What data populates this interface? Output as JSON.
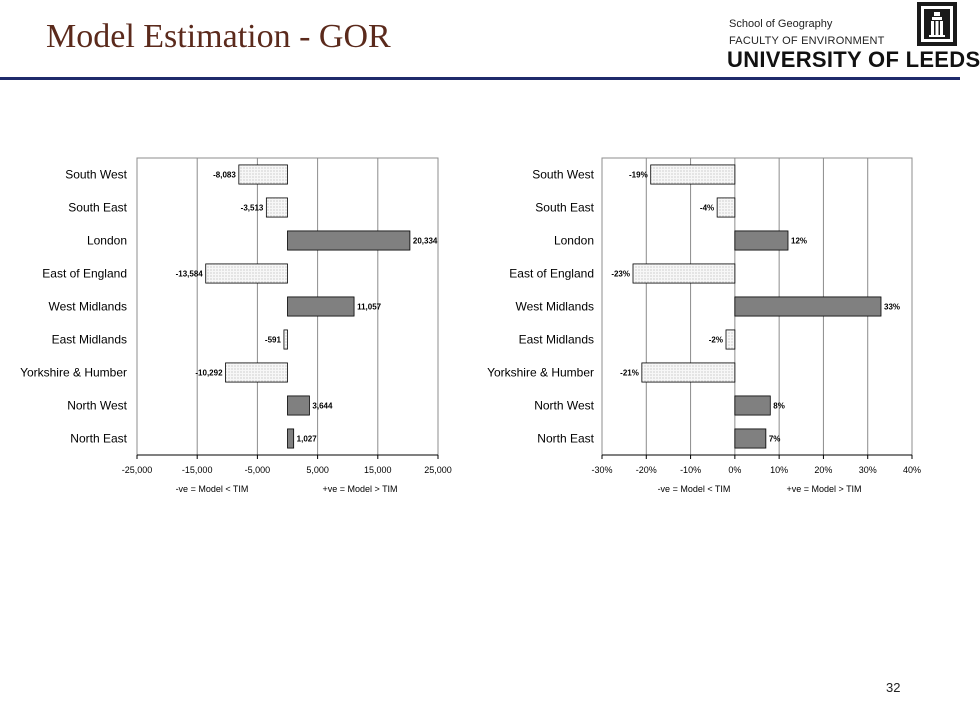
{
  "slide": {
    "title": "Model Estimation - GOR",
    "header": {
      "school": "School of Geography",
      "faculty": "FACULTY OF ENVIRONMENT",
      "university": "UNIVERSITY OF LEEDS",
      "logo_icon": "leeds-tower-crest-icon"
    },
    "page_number": "32"
  },
  "colors": {
    "title": "#5b2a1c",
    "rule": "#1f2a6b",
    "positive_bar": "#808080",
    "negative_bar_fill": "#f7f7f7",
    "negative_bar_dots": "#9a9a9a"
  },
  "chart_data": [
    {
      "type": "bar",
      "orientation": "horizontal",
      "categories": [
        "South West",
        "South East",
        "London",
        "East of England",
        "West Midlands",
        "East Midlands",
        "Yorkshire & Humber",
        "North West",
        "North East"
      ],
      "values": [
        -8083,
        -3513,
        20334,
        -13584,
        11057,
        -591,
        -10292,
        3644,
        1027
      ],
      "value_labels": [
        "-8,083",
        "-3,513",
        "20,334",
        "-13,584",
        "11,057",
        "-591",
        "-10,292",
        "3,644",
        "1,027"
      ],
      "xlim": [
        -25000,
        25000
      ],
      "xticks": [
        -25000,
        -15000,
        -5000,
        5000,
        15000,
        25000
      ],
      "xtick_labels": [
        "-25,000",
        "-15,000",
        "-5,000",
        "5,000",
        "15,000",
        "25,000"
      ],
      "grid": "vertical",
      "note_left": "-ve = Model < TIM",
      "note_right": "+ve = Model > TIM"
    },
    {
      "type": "bar",
      "orientation": "horizontal",
      "categories": [
        "South West",
        "South East",
        "London",
        "East of England",
        "West Midlands",
        "East Midlands",
        "Yorkshire & Humber",
        "North West",
        "North East"
      ],
      "values": [
        -19,
        -4,
        12,
        -23,
        33,
        -2,
        -21,
        8,
        7
      ],
      "value_labels": [
        "-19%",
        "-4%",
        "12%",
        "-23%",
        "33%",
        "-2%",
        "-21%",
        "8%",
        "7%"
      ],
      "xlim": [
        -30,
        40
      ],
      "xticks": [
        -30,
        -20,
        -10,
        0,
        10,
        20,
        30,
        40
      ],
      "xtick_labels": [
        "-30%",
        "-20%",
        "-10%",
        "0%",
        "10%",
        "20%",
        "30%",
        "40%"
      ],
      "grid": "vertical",
      "note_left": "-ve = Model < TIM",
      "note_right": "+ve = Model > TIM"
    }
  ]
}
